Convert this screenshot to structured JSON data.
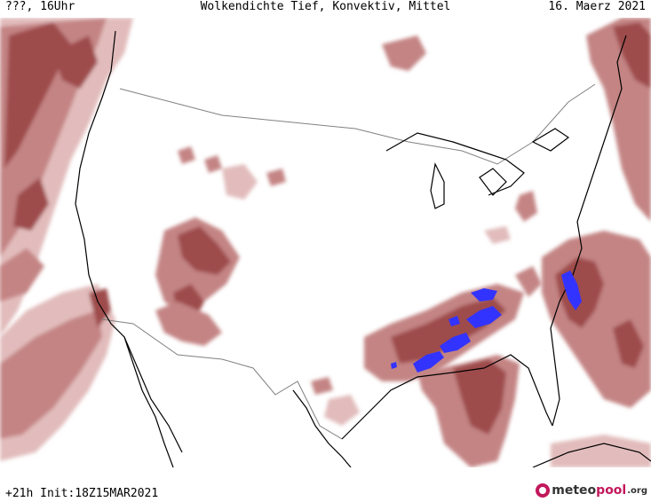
{
  "header": {
    "left_label": "???, 16Uhr",
    "title": "Wolkendichte  Tief, Konvektiv, Mittel",
    "date": "16. Maerz 2021"
  },
  "footer": {
    "init": "+21h Init:18Z15MAR2021",
    "brand_meteo": "meteo",
    "brand_pool": "pool",
    "brand_org": ".org"
  },
  "colors": {
    "cloud_dark": "#9e4c4c",
    "cloud_mid": "#c48484",
    "cloud_light": "#e2bcbc",
    "convective": "#3333ff",
    "coastline": "#000000",
    "border": "#808080"
  },
  "map_features": [
    "cloud-field-pacific-northwest",
    "cloud-field-pacific-southwest",
    "cloud-field-four-corners",
    "cloud-field-southeast",
    "cloud-field-gulf-of-mexico",
    "cloud-field-atlantic",
    "cloud-field-northeast-canada",
    "convective-cells-lower-mississippi",
    "convective-cells-florida-georgia"
  ]
}
